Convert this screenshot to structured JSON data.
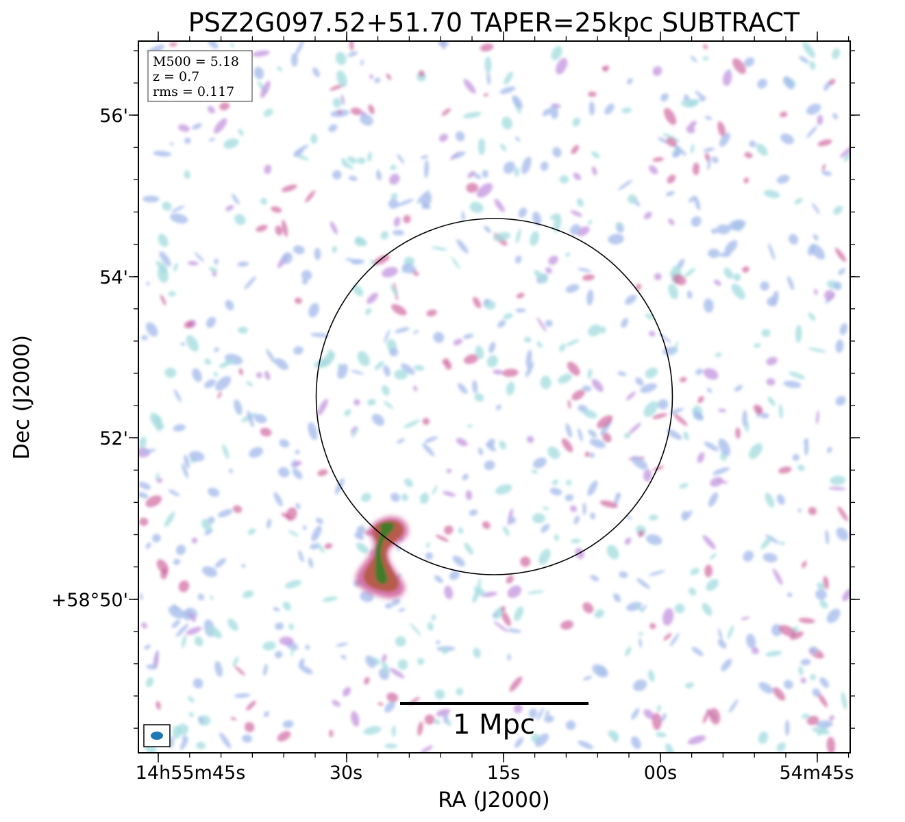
{
  "title": "PSZ2G097.52+51.70 TAPER=25kpc SUBTRACT",
  "info_box": {
    "lines": [
      "M500 = 5.18",
      "z = 0.7",
      "rms = 0.117"
    ]
  },
  "axes": {
    "xlabel": "RA (J2000)",
    "ylabel": "Dec (J2000)",
    "x_ticks": [
      "14h55m45s",
      "30s",
      "15s",
      "00s",
      "54m45s"
    ],
    "y_ticks": [
      "56'",
      "54'",
      "52'",
      "+58°50'"
    ]
  },
  "scale_bar": {
    "label": "1 Mpc"
  },
  "colors": {
    "cyan_noise": "#a8dde0",
    "blue_noise": "#a7bdec",
    "purple_noise": "#c59ae0",
    "magenta": "#cc5b96",
    "red_source": "#b75b4c",
    "green_core": "#3f7c2b",
    "beam": "#1f77b4"
  }
}
